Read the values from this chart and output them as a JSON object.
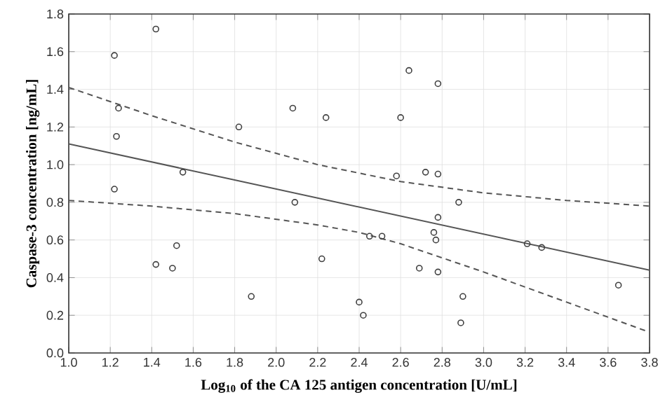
{
  "chart_data": {
    "type": "scatter",
    "xlabel": "Log$_{10}$ of the CA 125 antigen concentration [U/mL]",
    "ylabel": "Caspase-3 concentration [ng/mL]",
    "xlim": [
      1.0,
      3.8
    ],
    "ylim": [
      0.0,
      1.8
    ],
    "xticks": [
      {
        "value": 1.0,
        "label": "1.0"
      },
      1.2,
      1.4,
      1.6,
      1.8,
      {
        "value": 2.0,
        "label": "2.0"
      },
      2.2,
      2.4,
      2.6,
      2.8,
      {
        "value": 3.0,
        "label": "3.0"
      },
      3.2,
      3.4,
      3.6,
      3.8
    ],
    "yticks": [
      {
        "value": 0.0,
        "label": "0.0"
      },
      0.2,
      0.4,
      0.6,
      0.8,
      {
        "value": 1.0,
        "label": "1.0"
      },
      1.2,
      1.4,
      1.6,
      1.8
    ],
    "grid": true,
    "series": [
      {
        "marker": "circle",
        "color": "#404040",
        "x": [
          1.22,
          1.24,
          1.23,
          1.22,
          1.42,
          1.42,
          1.5,
          1.52,
          1.55,
          1.82,
          1.88,
          2.08,
          2.09,
          2.22,
          2.24,
          2.4,
          2.42,
          2.45,
          2.51,
          2.58,
          2.6,
          2.64,
          2.69,
          2.72,
          2.78,
          2.78,
          2.78,
          2.76,
          2.77,
          2.78,
          2.88,
          2.9,
          2.89,
          3.21,
          3.28,
          3.65
        ],
        "values": [
          1.58,
          1.3,
          1.15,
          0.87,
          1.72,
          0.47,
          0.45,
          0.57,
          0.96,
          1.2,
          0.3,
          1.3,
          0.8,
          0.5,
          1.25,
          0.27,
          0.2,
          0.62,
          0.62,
          0.94,
          1.25,
          1.5,
          0.45,
          0.96,
          1.43,
          0.95,
          0.72,
          0.64,
          0.6,
          0.43,
          0.8,
          0.3,
          0.16,
          0.58,
          0.56,
          0.36
        ]
      },
      {
        "type": "line",
        "marker": "none",
        "line_style": "solid",
        "color": "#555555",
        "x": [
          1.0,
          3.8
        ],
        "values": [
          1.11,
          0.44
        ]
      },
      {
        "type": "line",
        "marker": "none",
        "line_style": "dashed",
        "color": "#555555",
        "x": [
          1.0,
          1.4,
          1.8,
          2.2,
          2.6,
          3.0,
          3.4,
          3.8
        ],
        "values": [
          1.41,
          1.26,
          1.12,
          1.0,
          0.91,
          0.85,
          0.81,
          0.78
        ]
      },
      {
        "type": "line",
        "marker": "none",
        "line_style": "dashed",
        "color": "#555555",
        "x": [
          1.0,
          1.4,
          1.8,
          2.2,
          2.4,
          2.6,
          3.0,
          3.4,
          3.8
        ],
        "values": [
          0.81,
          0.78,
          0.74,
          0.68,
          0.64,
          0.58,
          0.43,
          0.27,
          0.11
        ]
      }
    ]
  }
}
